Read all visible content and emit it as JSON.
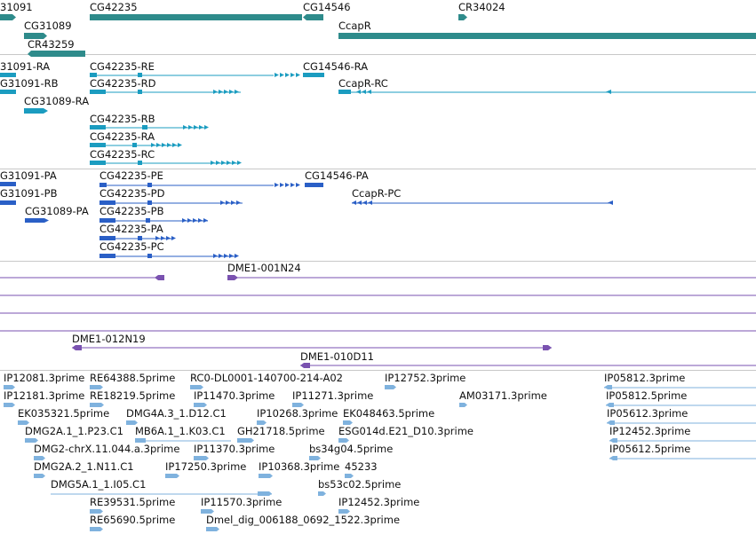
{
  "colors": {
    "gene": "#2e8b8b",
    "transcript": "#1b9cc0",
    "protein": "#2a5fc6",
    "clone": "#7a52b0",
    "est": "#7fb2de",
    "separator": "#c8c8c8"
  },
  "genes": [
    {
      "label": "31091"
    },
    {
      "label": "CG42235"
    },
    {
      "label": "CG14546"
    },
    {
      "label": "CR34024"
    },
    {
      "label": "CG31089"
    },
    {
      "label": "CcapR"
    },
    {
      "label": "CR43259"
    }
  ],
  "transcripts": [
    {
      "label": "31091-RA"
    },
    {
      "label": "CG42235-RE"
    },
    {
      "label": "CG14546-RA"
    },
    {
      "label": "G31091-RB"
    },
    {
      "label": "CG42235-RD"
    },
    {
      "label": "CcapR-RC"
    },
    {
      "label": "CG31089-RA"
    },
    {
      "label": "CG42235-RB"
    },
    {
      "label": "CG42235-RA"
    },
    {
      "label": "CG42235-RC"
    }
  ],
  "proteins": [
    {
      "label": "G31091-PA"
    },
    {
      "label": "CG42235-PE"
    },
    {
      "label": "CG14546-PA"
    },
    {
      "label": "G31091-PB"
    },
    {
      "label": "CG42235-PD"
    },
    {
      "label": "CcapR-PC"
    },
    {
      "label": "CG31089-PA"
    },
    {
      "label": "CG42235-PB"
    },
    {
      "label": "CG42235-PA"
    },
    {
      "label": "CG42235-PC"
    }
  ],
  "clones": [
    {
      "label": "DME1-001N24"
    },
    {
      "label": "DME1-012N19"
    },
    {
      "label": "DME1-010D11"
    }
  ],
  "ests": [
    {
      "label": "IP12081.3prime"
    },
    {
      "label": "RE64388.5prime"
    },
    {
      "label": "RC0-DL0001-140700-214-A02"
    },
    {
      "label": "IP12752.3prime"
    },
    {
      "label": "IP05812.3prime"
    },
    {
      "label": "IP12181.3prime"
    },
    {
      "label": "RE18219.5prime"
    },
    {
      "label": "IP11470.3prime"
    },
    {
      "label": "IP11271.3prime"
    },
    {
      "label": "AM03171.3prime"
    },
    {
      "label": "IP05812.5prime"
    },
    {
      "label": "EK035321.5prime"
    },
    {
      "label": "DMG4A.3_1.D12.C1"
    },
    {
      "label": "IP10268.3prime"
    },
    {
      "label": "EK048463.5prime"
    },
    {
      "label": "IP05612.3prime"
    },
    {
      "label": "DMG2A.1_1.P23.C1"
    },
    {
      "label": "MB6A.1_1.K03.C1"
    },
    {
      "label": "GH21718.5prime"
    },
    {
      "label": "ESG014d.E21_D10.3prime"
    },
    {
      "label": "IP12452.3prime"
    },
    {
      "label": "DMG2-chrX.11.044.a.3prime"
    },
    {
      "label": "IP11370.3prime"
    },
    {
      "label": "bs34g04.5prime"
    },
    {
      "label": "IP05612.5prime"
    },
    {
      "label": "DMG2A.2_1.N11.C1"
    },
    {
      "label": "IP17250.3prime"
    },
    {
      "label": "IP10368.3prime"
    },
    {
      "label": "45233"
    },
    {
      "label": "DMG5A.1_1.I05.C1"
    },
    {
      "label": "bs53c02.5prime"
    },
    {
      "label": "RE39531.5prime"
    },
    {
      "label": "IP11570.3prime"
    },
    {
      "label": "IP12452.3prime"
    },
    {
      "label": "RE65690.5prime"
    },
    {
      "label": "Dmel_dig_006188_0692_1522.3prime"
    }
  ]
}
